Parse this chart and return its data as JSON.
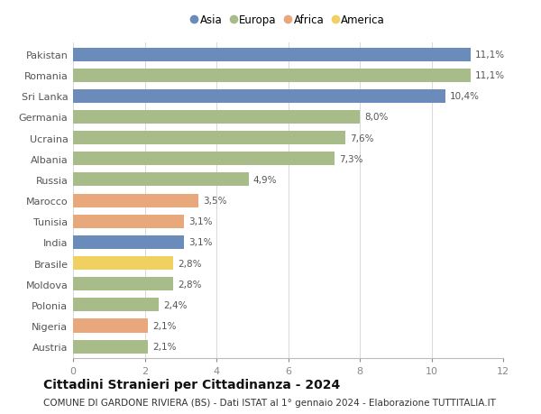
{
  "categories": [
    "Pakistan",
    "Romania",
    "Sri Lanka",
    "Germania",
    "Ucraina",
    "Albania",
    "Russia",
    "Marocco",
    "Tunisia",
    "India",
    "Brasile",
    "Moldova",
    "Polonia",
    "Nigeria",
    "Austria"
  ],
  "values": [
    11.1,
    11.1,
    10.4,
    8.0,
    7.6,
    7.3,
    4.9,
    3.5,
    3.1,
    3.1,
    2.8,
    2.8,
    2.4,
    2.1,
    2.1
  ],
  "labels": [
    "11,1%",
    "11,1%",
    "10,4%",
    "8,0%",
    "7,6%",
    "7,3%",
    "4,9%",
    "3,5%",
    "3,1%",
    "3,1%",
    "2,8%",
    "2,8%",
    "2,4%",
    "2,1%",
    "2,1%"
  ],
  "continents": [
    "Asia",
    "Europa",
    "Asia",
    "Europa",
    "Europa",
    "Europa",
    "Europa",
    "Africa",
    "Africa",
    "Asia",
    "America",
    "Europa",
    "Europa",
    "Africa",
    "Europa"
  ],
  "continent_colors": {
    "Asia": "#6b8cba",
    "Europa": "#a8bc8a",
    "Africa": "#e8a87c",
    "America": "#f0d060"
  },
  "legend_order": [
    "Asia",
    "Europa",
    "Africa",
    "America"
  ],
  "title": "Cittadini Stranieri per Cittadinanza - 2024",
  "subtitle": "COMUNE DI GARDONE RIVIERA (BS) - Dati ISTAT al 1° gennaio 2024 - Elaborazione TUTTITALIA.IT",
  "xlim": [
    0,
    12
  ],
  "xticks": [
    0,
    2,
    4,
    6,
    8,
    10,
    12
  ],
  "bar_height": 0.65,
  "title_fontsize": 10,
  "subtitle_fontsize": 7.5,
  "label_fontsize": 7.5,
  "ytick_fontsize": 8,
  "xtick_fontsize": 8,
  "legend_fontsize": 8.5
}
